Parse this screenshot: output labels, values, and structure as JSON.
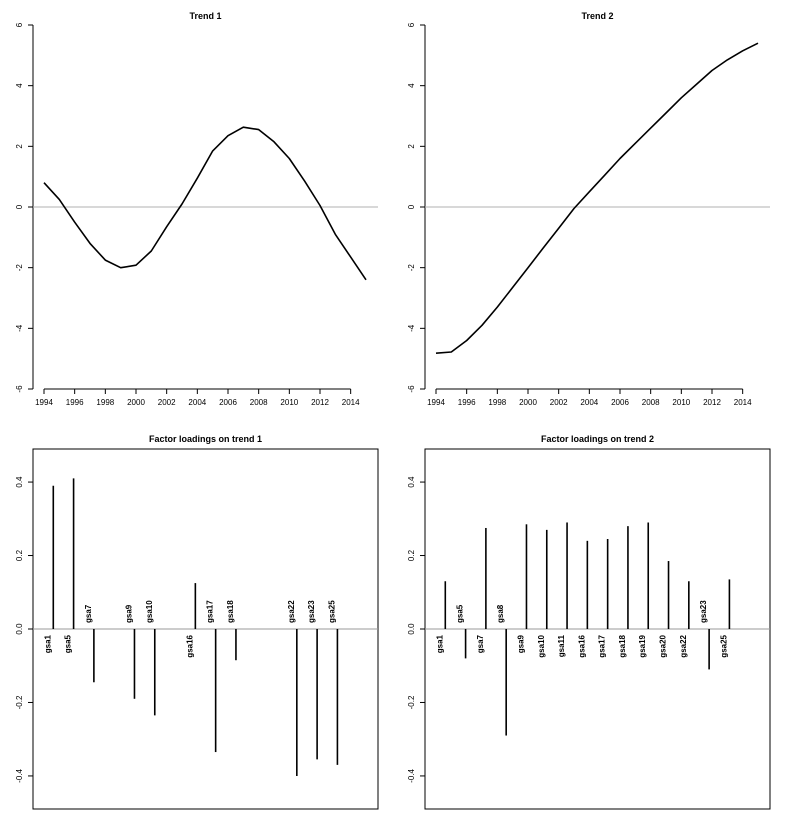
{
  "chart_data": [
    {
      "type": "line",
      "title": "Trend 1",
      "x": [
        1994,
        1995,
        1996,
        1997,
        1998,
        1999,
        2000,
        2001,
        2002,
        2003,
        2004,
        2005,
        2006,
        2007,
        2008,
        2009,
        2010,
        2011,
        2012,
        2013,
        2014,
        2015
      ],
      "y": [
        0.8,
        0.25,
        -0.5,
        -1.2,
        -1.75,
        -2.0,
        -1.92,
        -1.45,
        -0.65,
        0.1,
        0.95,
        1.85,
        2.35,
        2.63,
        2.55,
        2.15,
        1.6,
        0.85,
        0.05,
        -0.9,
        -1.65,
        -2.4
      ],
      "xlim": [
        1993.7,
        2015.3
      ],
      "ylim": [
        -6,
        6
      ],
      "xticks": [
        1994,
        1996,
        1998,
        2000,
        2002,
        2004,
        2006,
        2008,
        2010,
        2012,
        2014
      ],
      "yticks": [
        -6,
        -4,
        -2,
        0,
        2,
        4,
        6
      ],
      "reference_line": 0,
      "xlabel": "",
      "ylabel": ""
    },
    {
      "type": "line",
      "title": "Trend 2",
      "x": [
        1994,
        1995,
        1996,
        1997,
        1998,
        1999,
        2000,
        2001,
        2002,
        2003,
        2004,
        2005,
        2006,
        2007,
        2008,
        2009,
        2010,
        2011,
        2012,
        2013,
        2014,
        2015
      ],
      "y": [
        -4.82,
        -4.78,
        -4.4,
        -3.9,
        -3.3,
        -2.65,
        -2.0,
        -1.35,
        -0.7,
        -0.05,
        0.5,
        1.05,
        1.6,
        2.1,
        2.6,
        3.1,
        3.6,
        4.05,
        4.5,
        4.85,
        5.15,
        5.4
      ],
      "xlim": [
        1993.7,
        2015.3
      ],
      "ylim": [
        -6,
        6
      ],
      "xticks": [
        1994,
        1996,
        1998,
        2000,
        2002,
        2004,
        2006,
        2008,
        2010,
        2012,
        2014
      ],
      "yticks": [
        -6,
        -4,
        -2,
        0,
        2,
        4,
        6
      ],
      "reference_line": 0,
      "xlabel": "",
      "ylabel": ""
    },
    {
      "type": "bar",
      "title": "Factor loadings on trend 1",
      "categories": [
        "gsa1",
        "gsa5",
        "gsa7",
        "gsa9",
        "gsa10",
        "gsa16",
        "gsa17",
        "gsa18",
        "gsa22",
        "gsa23",
        "gsa25"
      ],
      "values": [
        0.39,
        0.41,
        -0.145,
        -0.19,
        -0.235,
        0.125,
        -0.335,
        -0.085,
        -0.4,
        -0.355,
        -0.37
      ],
      "slots": 16,
      "positions": [
        1,
        2,
        3,
        5,
        6,
        8,
        9,
        10,
        13,
        14,
        15
      ],
      "ylim": [
        -0.49,
        0.49
      ],
      "yticks": [
        -0.4,
        -0.2,
        0.0,
        0.2,
        0.4
      ],
      "ytick_labels": [
        "-0.4",
        "-0.2",
        "0.0",
        "0.2",
        "0.4"
      ],
      "reference_line": 0,
      "xlabel": "",
      "ylabel": ""
    },
    {
      "type": "bar",
      "title": "Factor loadings on trend 2",
      "categories": [
        "gsa1",
        "gsa5",
        "gsa7",
        "gsa8",
        "gsa9",
        "gsa10",
        "gsa11",
        "gsa16",
        "gsa17",
        "gsa18",
        "gsa19",
        "gsa20",
        "gsa22",
        "gsa23",
        "gsa25"
      ],
      "values": [
        0.13,
        -0.08,
        0.275,
        -0.29,
        0.285,
        0.27,
        0.29,
        0.24,
        0.245,
        0.28,
        0.29,
        0.185,
        0.13,
        -0.11,
        0.135
      ],
      "slots": 16,
      "positions": [
        1,
        2,
        3,
        4,
        5,
        6,
        7,
        8,
        9,
        10,
        11,
        12,
        13,
        14,
        15
      ],
      "ylim": [
        -0.49,
        0.49
      ],
      "yticks": [
        -0.4,
        -0.2,
        0.0,
        0.2,
        0.4
      ],
      "ytick_labels": [
        "-0.4",
        "-0.2",
        "0.0",
        "0.2",
        "0.4"
      ],
      "reference_line": 0,
      "xlabel": "",
      "ylabel": ""
    }
  ],
  "colors": {
    "line": "#000000",
    "reference": "#b0b0b0",
    "axis": "#000000"
  }
}
